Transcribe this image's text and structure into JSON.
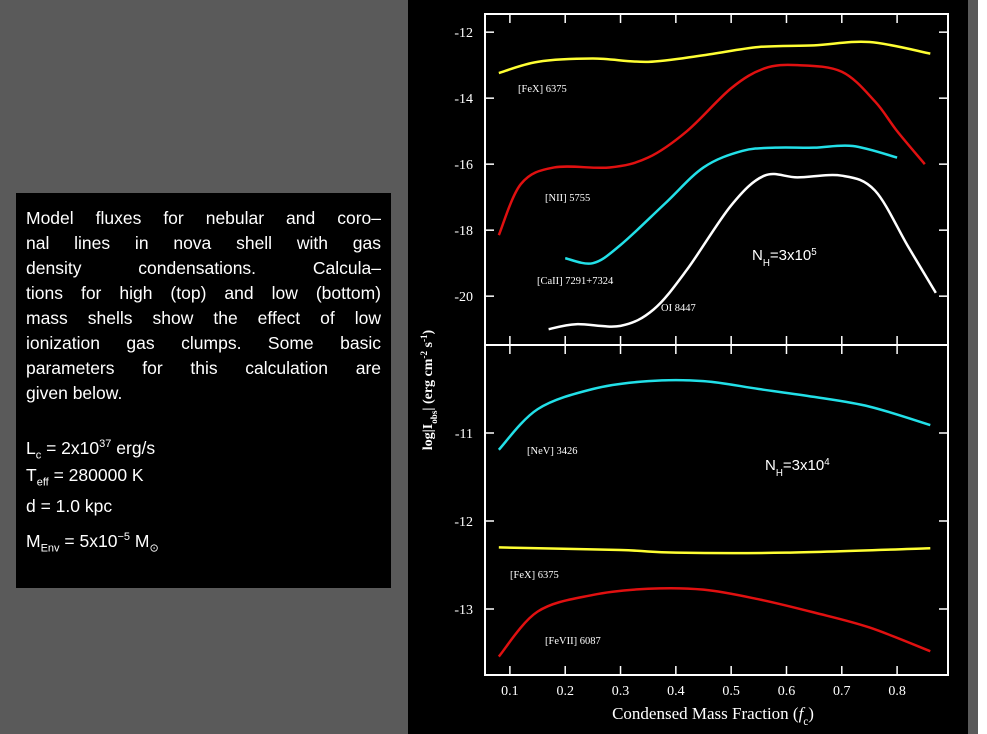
{
  "text_box": {
    "lines": [
      "Model fluxes for nebular and coro–",
      "nal lines in nova shell with gas",
      "density condensations. Calcula–",
      "tions for high (top) and low (bottom)",
      "mass shells show the effect of low",
      "ionization gas clumps. Some basic",
      "parameters for this calculation are",
      "given below."
    ],
    "params": [
      [
        {
          "text": "L",
          "style": "base"
        },
        {
          "text": "c",
          "style": "sub"
        },
        {
          "text": " = 2x10",
          "style": "base"
        },
        {
          "text": "37",
          "style": "sup"
        },
        {
          "text": " erg/s",
          "style": "base"
        }
      ],
      [
        {
          "text": "T",
          "style": "base"
        },
        {
          "text": "eff",
          "style": "sub"
        },
        {
          "text": " = 280000 K",
          "style": "base"
        }
      ],
      [
        {
          "text": "d = 1.0 kpc",
          "style": "base"
        }
      ],
      [
        {
          "text": "M",
          "style": "base"
        },
        {
          "text": "Env",
          "style": "sub"
        },
        {
          "text": " = 5x10",
          "style": "base"
        },
        {
          "text": "−5",
          "style": "sup"
        },
        {
          "text": " M",
          "style": "base"
        },
        {
          "text": "⊙",
          "style": "sub"
        }
      ]
    ]
  },
  "chart_data": [
    {
      "type": "line",
      "ylabel": [
        {
          "text": "log|I",
          "style": "base"
        },
        {
          "text": "obs",
          "style": "sub"
        },
        {
          "text": "| (erg cm",
          "style": "base"
        },
        {
          "text": "-2",
          "style": "sup"
        },
        {
          "text": " s",
          "style": "base"
        },
        {
          "text": "-1",
          "style": "sup"
        },
        {
          "text": ")",
          "style": "base"
        }
      ],
      "annotation": [
        {
          "text": "N",
          "style": "base"
        },
        {
          "text": "H",
          "style": "sub"
        },
        {
          "text": "=3x10",
          "style": "base"
        },
        {
          "text": "5",
          "style": "sup"
        }
      ],
      "xlim": [
        0.055,
        0.892
      ],
      "ylim": [
        -21.48,
        -11.45
      ],
      "yticks": [
        -12,
        -14,
        -16,
        -18,
        -20
      ],
      "series": [
        {
          "name": "[FeX] 6375",
          "color": "#ffff33",
          "x": [
            0.08,
            0.15,
            0.25,
            0.35,
            0.45,
            0.55,
            0.65,
            0.75,
            0.86
          ],
          "values": [
            -13.24,
            -12.9,
            -12.8,
            -12.9,
            -12.7,
            -12.45,
            -12.4,
            -12.3,
            -12.65
          ]
        },
        {
          "name": "[NII] 5755",
          "color": "#e01010",
          "x": [
            0.08,
            0.12,
            0.18,
            0.28,
            0.35,
            0.42,
            0.5,
            0.56,
            0.62,
            0.7,
            0.76,
            0.8,
            0.85
          ],
          "values": [
            -18.15,
            -16.6,
            -16.1,
            -16.1,
            -15.8,
            -15.0,
            -13.7,
            -13.1,
            -13.0,
            -13.2,
            -14.1,
            -15.0,
            -16.0
          ]
        },
        {
          "name": "[CaII] 7291+7324",
          "color": "#22e0e8",
          "x": [
            0.2,
            0.25,
            0.3,
            0.38,
            0.45,
            0.52,
            0.58,
            0.65,
            0.72,
            0.8
          ],
          "values": [
            -18.85,
            -19.0,
            -18.45,
            -17.2,
            -16.1,
            -15.6,
            -15.5,
            -15.5,
            -15.45,
            -15.8
          ]
        },
        {
          "name": "OI 8447",
          "color": "#ffffff",
          "x": [
            0.17,
            0.22,
            0.3,
            0.36,
            0.42,
            0.5,
            0.56,
            0.62,
            0.7,
            0.76,
            0.82,
            0.87
          ],
          "values": [
            -21.0,
            -20.85,
            -20.9,
            -20.4,
            -19.2,
            -17.25,
            -16.35,
            -16.4,
            -16.35,
            -16.8,
            -18.5,
            -19.9
          ]
        }
      ]
    },
    {
      "type": "line",
      "xlabel": [
        {
          "text": "Condensed Mass Fraction (",
          "style": "base"
        },
        {
          "text": "f",
          "style": "italic"
        },
        {
          "text": "c",
          "style": "sub"
        },
        {
          "text": ")",
          "style": "base"
        }
      ],
      "annotation": [
        {
          "text": "N",
          "style": "base"
        },
        {
          "text": "H",
          "style": "sub"
        },
        {
          "text": "=3x10",
          "style": "base"
        },
        {
          "text": "4",
          "style": "sup"
        }
      ],
      "xlim": [
        0.055,
        0.892
      ],
      "xticks": [
        0.1,
        0.2,
        0.3,
        0.4,
        0.5,
        0.6,
        0.7,
        0.8
      ],
      "ylim": [
        -13.75,
        -10.0
      ],
      "yticks": [
        -11,
        -12,
        -13
      ],
      "series": [
        {
          "name": "[NeV] 3426",
          "color": "#22e0e8",
          "x": [
            0.08,
            0.15,
            0.25,
            0.35,
            0.45,
            0.55,
            0.65,
            0.75,
            0.86
          ],
          "values": [
            -11.19,
            -10.73,
            -10.5,
            -10.41,
            -10.41,
            -10.5,
            -10.59,
            -10.7,
            -10.91
          ]
        },
        {
          "name": "[FeX] 6375",
          "color": "#ffff33",
          "x": [
            0.08,
            0.3,
            0.4,
            0.6,
            0.86
          ],
          "values": [
            -12.3,
            -12.33,
            -12.36,
            -12.36,
            -12.31
          ]
        },
        {
          "name": "[FeVII] 6087",
          "color": "#e01010",
          "x": [
            0.08,
            0.15,
            0.25,
            0.35,
            0.45,
            0.55,
            0.65,
            0.75,
            0.86
          ],
          "values": [
            -13.54,
            -13.03,
            -12.84,
            -12.77,
            -12.78,
            -12.89,
            -13.04,
            -13.21,
            -13.48
          ]
        }
      ]
    }
  ]
}
